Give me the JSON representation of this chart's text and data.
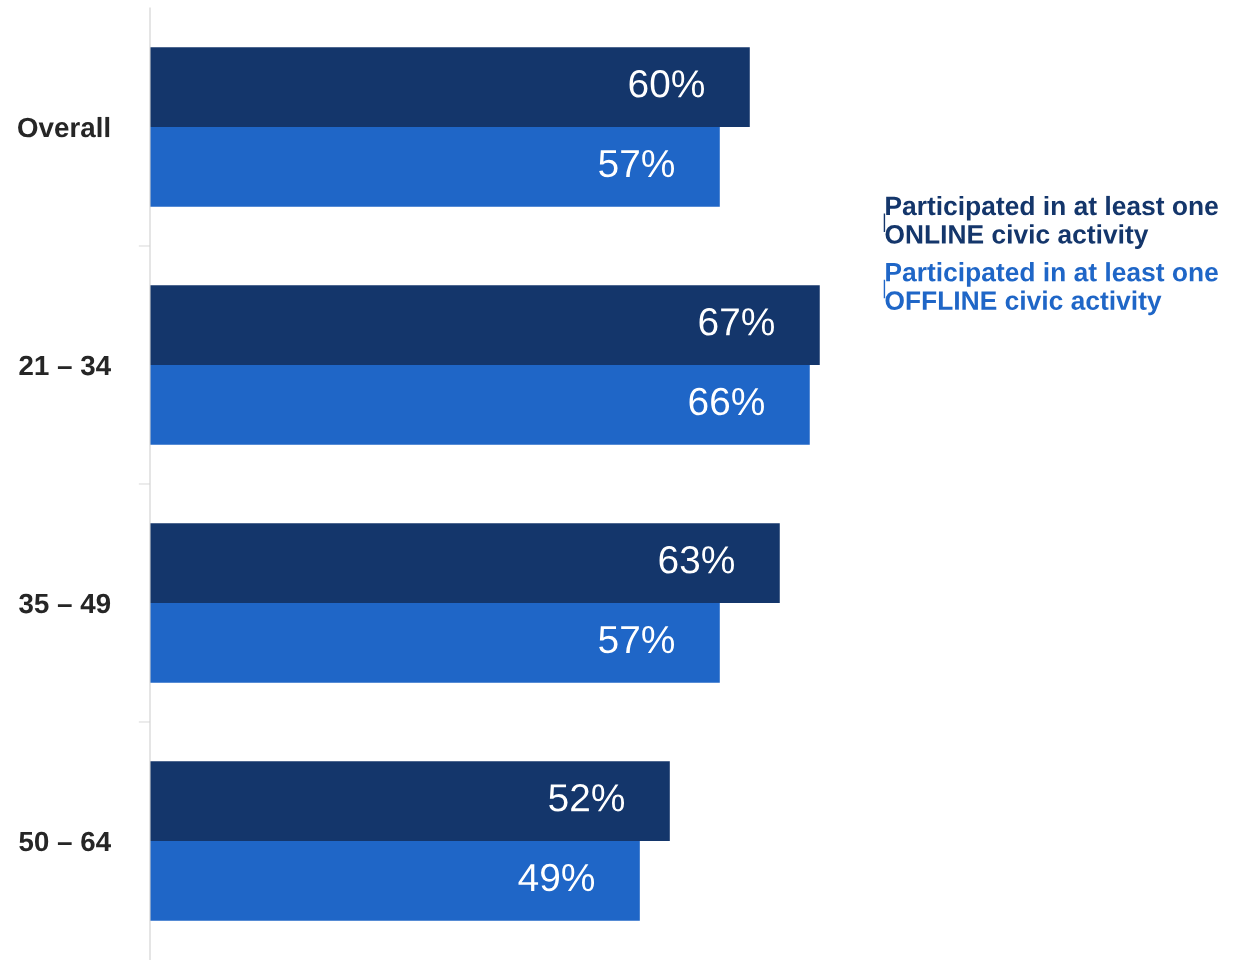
{
  "chart_data": {
    "type": "bar",
    "orientation": "horizontal",
    "categories": [
      "Overall",
      "21 – 34",
      "35 – 49",
      "50 – 64"
    ],
    "series": [
      {
        "name": "Participated in at least one ONLINE civic activity",
        "color": "#14366b",
        "values": [
          60,
          67,
          63,
          52
        ],
        "value_labels": [
          "60%",
          "67%",
          "63%",
          "52%"
        ]
      },
      {
        "name": "Participated in at least one OFFLINE civic activity",
        "color": "#1f66c7",
        "values": [
          57,
          66,
          57,
          49
        ],
        "value_labels": [
          "57%",
          "66%",
          "57%",
          "49%"
        ]
      }
    ],
    "legend": "right",
    "grid": false
  }
}
